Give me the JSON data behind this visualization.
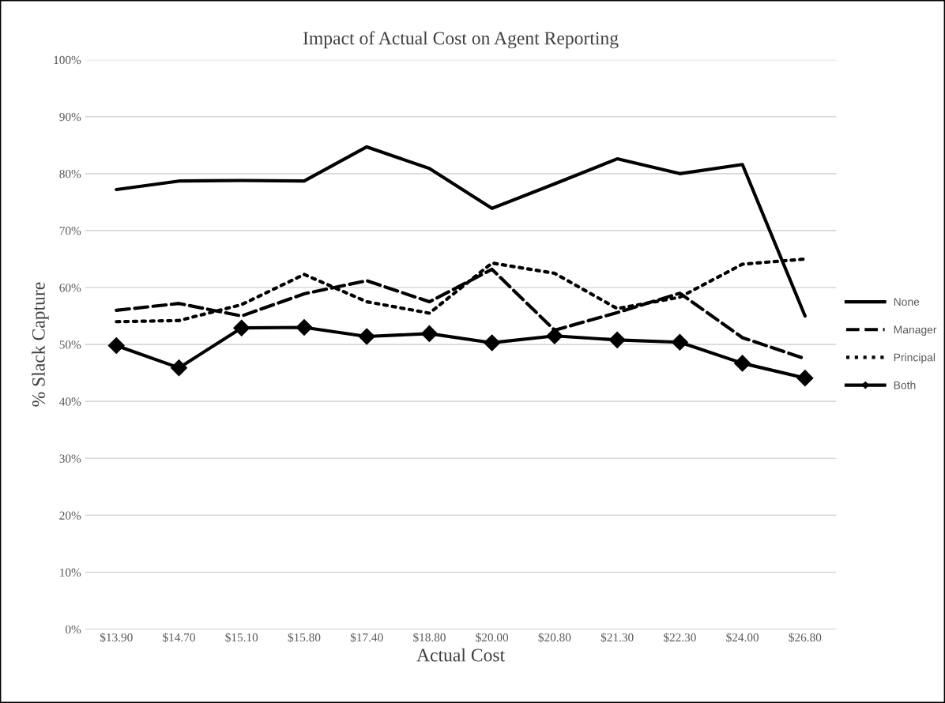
{
  "chart_data": {
    "type": "line",
    "title": "Impact of Actual Cost on Agent Reporting",
    "xlabel": "Actual Cost",
    "ylabel": "% Slack Capture",
    "categories": [
      "$13.90",
      "$14.70",
      "$15.10",
      "$15.80",
      "$17.40",
      "$18.80",
      "$20.00",
      "$20.80",
      "$21.30",
      "$22.30",
      "$24.00",
      "$26.80"
    ],
    "series": [
      {
        "name": "None",
        "color": "#000000",
        "line_style": "solid",
        "marker": "none",
        "values": [
          77.2,
          78.7,
          78.8,
          78.7,
          84.7,
          80.9,
          73.9,
          78.2,
          82.6,
          80.0,
          81.6,
          55.0
        ]
      },
      {
        "name": "Manager",
        "color": "#000000",
        "line_style": "dashed",
        "marker": "none",
        "values": [
          56.0,
          57.2,
          55.0,
          58.9,
          61.2,
          57.5,
          63.2,
          52.5,
          55.6,
          59.0,
          51.2,
          47.5
        ]
      },
      {
        "name": "Principal",
        "color": "#000000",
        "line_style": "dotted",
        "marker": "none",
        "values": [
          54.0,
          54.2,
          57.0,
          62.3,
          57.5,
          55.5,
          64.3,
          62.5,
          56.3,
          58.3,
          64.1,
          65.0
        ]
      },
      {
        "name": "Both",
        "color": "#000000",
        "line_style": "solid",
        "marker": "diamond",
        "values": [
          49.8,
          45.9,
          52.9,
          53.0,
          51.4,
          51.9,
          50.3,
          51.5,
          50.8,
          50.4,
          46.7,
          44.1
        ]
      }
    ],
    "ylim": [
      0,
      100
    ],
    "yticks": [
      {
        "value": 0,
        "label": "0%"
      },
      {
        "value": 10,
        "label": "10%"
      },
      {
        "value": 20,
        "label": "20%"
      },
      {
        "value": 30,
        "label": "30%"
      },
      {
        "value": 40,
        "label": "40%"
      },
      {
        "value": 50,
        "label": "50%"
      },
      {
        "value": 60,
        "label": "60%"
      },
      {
        "value": 70,
        "label": "70%"
      },
      {
        "value": 80,
        "label": "80%"
      },
      {
        "value": 90,
        "label": "90%"
      },
      {
        "value": 100,
        "label": "100%"
      }
    ],
    "grid": "y",
    "legend": "right"
  }
}
